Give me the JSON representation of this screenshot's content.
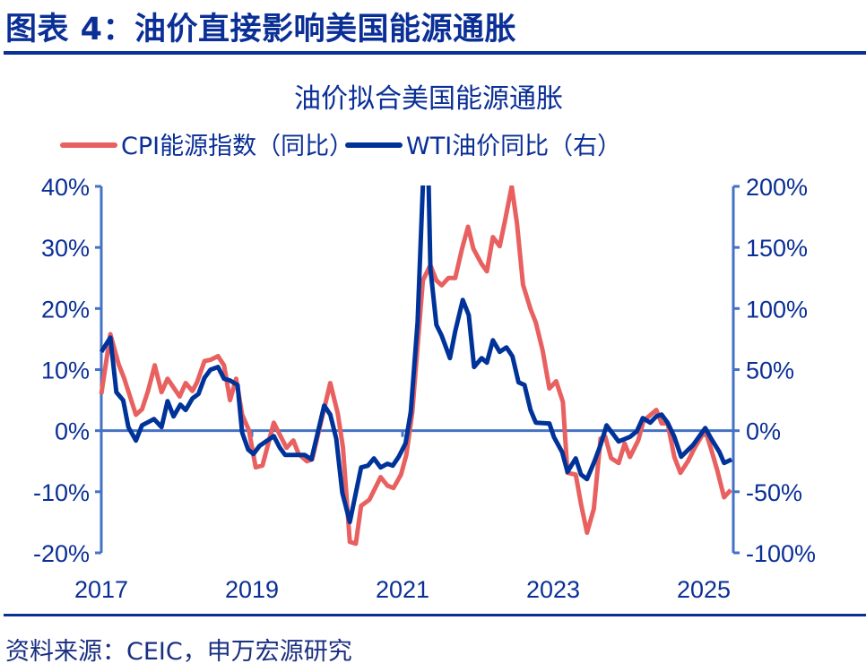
{
  "figure_title": "图表 4：油价直接影响美国能源通胀",
  "source": "资料来源：CEIC，申万宏源研究",
  "colors": {
    "cpi": "#e8605f",
    "wti": "#003399",
    "axis": "#4472c4",
    "text": "#0a2f96"
  },
  "chart_data": {
    "type": "line",
    "title": "油价拟合美国能源通胀",
    "legend_placement": "top",
    "grid": false,
    "x_ticks": [
      "2017",
      "2019",
      "2021",
      "2023",
      "2025"
    ],
    "xlim": [
      2017,
      2025.45
    ],
    "y_left": {
      "ticks": [
        "40%",
        "30%",
        "20%",
        "10%",
        "0%",
        "-10%",
        "-20%"
      ],
      "range": [
        -20,
        40
      ]
    },
    "y_right": {
      "ticks": [
        "200%",
        "150%",
        "100%",
        "50%",
        "0%",
        "-50%",
        "-100%"
      ],
      "range": [
        -100,
        200
      ]
    },
    "series": [
      {
        "name": "CPI能源指数（同比）",
        "axis": "left",
        "x": [
          2017.0,
          2017.12,
          2017.23,
          2017.3,
          2017.46,
          2017.54,
          2017.62,
          2017.71,
          2017.8,
          2017.88,
          2018.04,
          2018.12,
          2018.21,
          2018.27,
          2018.37,
          2018.45,
          2018.55,
          2018.63,
          2018.71,
          2018.79,
          2018.87,
          2018.96,
          2019.05,
          2019.14,
          2019.29,
          2019.38,
          2019.46,
          2019.55,
          2019.62,
          2019.73,
          2019.8,
          2020.04,
          2020.14,
          2020.21,
          2020.3,
          2020.38,
          2020.45,
          2020.56,
          2020.71,
          2020.8,
          2020.88,
          2020.98,
          2021.05,
          2021.13,
          2021.27,
          2021.37,
          2021.45,
          2021.52,
          2021.61,
          2021.7,
          2021.79,
          2021.87,
          2021.94,
          2022.05,
          2022.12,
          2022.2,
          2022.29,
          2022.36,
          2022.45,
          2022.52,
          2022.6,
          2022.7,
          2022.77,
          2022.86,
          2022.95,
          2023.04,
          2023.13,
          2023.19,
          2023.3,
          2023.37,
          2023.45,
          2023.54,
          2023.63,
          2023.69,
          2023.77,
          2023.87,
          2023.95,
          2024.02,
          2024.13,
          2024.2,
          2024.37,
          2024.44,
          2024.52,
          2024.61,
          2024.69,
          2024.79,
          2024.88,
          2025.02,
          2025.1,
          2025.18,
          2025.27,
          2025.36
        ],
        "values": [
          6.0,
          15.8,
          10.9,
          8.7,
          2.6,
          3.5,
          6.5,
          10.7,
          6.3,
          8.5,
          5.6,
          7.8,
          6.5,
          7.9,
          11.4,
          11.6,
          12.2,
          10.7,
          5.0,
          8.5,
          2.6,
          0.1,
          -6.0,
          -5.7,
          1.3,
          -0.9,
          -2.8,
          -1.6,
          -3.8,
          -5.0,
          -4.7,
          7.8,
          2.8,
          -2.8,
          -18.2,
          -18.5,
          -12.3,
          -11.3,
          -7.6,
          -9.0,
          -9.4,
          -7.2,
          -4.0,
          3.0,
          24.6,
          27.1,
          24.6,
          23.8,
          25.0,
          25.0,
          29.8,
          33.4,
          29.8,
          27.3,
          26.1,
          31.7,
          30.2,
          34.3,
          40.0,
          33.9,
          23.9,
          19.9,
          17.7,
          13.2,
          6.9,
          8.1,
          4.7,
          -6.9,
          -7.2,
          -12.0,
          -16.7,
          -12.8,
          -1.3,
          -0.9,
          -4.5,
          -5.3,
          -2.1,
          -4.3,
          -1.6,
          1.6,
          3.4,
          1.2,
          1.2,
          -4.3,
          -6.9,
          -5.0,
          -2.8,
          0.1,
          -3.1,
          -6.5,
          -10.9,
          -9.7
        ]
      },
      {
        "name": "WTI油价同比（右）",
        "axis": "right",
        "x": [
          2017.0,
          2017.12,
          2017.2,
          2017.29,
          2017.36,
          2017.46,
          2017.54,
          2017.7,
          2017.8,
          2017.88,
          2017.96,
          2018.05,
          2018.12,
          2018.21,
          2018.29,
          2018.37,
          2018.45,
          2018.55,
          2018.63,
          2018.71,
          2018.81,
          2018.87,
          2018.95,
          2019.02,
          2019.1,
          2019.29,
          2019.37,
          2019.44,
          2019.7,
          2019.79,
          2019.96,
          2020.04,
          2020.12,
          2020.2,
          2020.3,
          2020.45,
          2020.54,
          2020.62,
          2020.71,
          2020.8,
          2020.87,
          2020.95,
          2021.04,
          2021.11,
          2021.2,
          2021.32,
          2021.37,
          2021.45,
          2021.52,
          2021.63,
          2021.7,
          2021.8,
          2021.88,
          2021.95,
          2022.05,
          2022.12,
          2022.2,
          2022.29,
          2022.38,
          2022.46,
          2022.54,
          2022.62,
          2022.7,
          2022.77,
          2022.95,
          2023.01,
          2023.12,
          2023.19,
          2023.3,
          2023.37,
          2023.45,
          2023.55,
          2023.63,
          2023.71,
          2023.87,
          2024.02,
          2024.11,
          2024.19,
          2024.29,
          2024.37,
          2024.44,
          2024.52,
          2024.61,
          2024.7,
          2024.86,
          2025.02,
          2025.1,
          2025.21,
          2025.27,
          2025.37
        ],
        "values": [
          64.5,
          76.2,
          31.5,
          24.9,
          2.9,
          -8.1,
          4.4,
          9.5,
          2.9,
          24.2,
          11.7,
          21.3,
          16.9,
          26.4,
          30.1,
          43.3,
          49.9,
          52.1,
          42.5,
          41.1,
          37.4,
          -1.5,
          -15.4,
          -19.1,
          -12.5,
          -4.4,
          -13.9,
          -19.8,
          -19.8,
          -23.5,
          20.5,
          13.2,
          -6.6,
          -50.6,
          -74.8,
          -30.1,
          -28.6,
          -22.7,
          -30.1,
          -27.1,
          -28.6,
          -21.3,
          -10.3,
          15.4,
          88.7,
          280,
          132.7,
          86.5,
          77.7,
          59.4,
          81.4,
          107.0,
          94.6,
          52.1,
          59.4,
          55.7,
          74.0,
          64.5,
          68.2,
          60.9,
          39.6,
          37.4,
          16.9,
          6.6,
          5.9,
          -5.1,
          -17.6,
          -33.7,
          -22.7,
          -35.9,
          -39.6,
          -24.9,
          -11.7,
          4.4,
          -8.8,
          -5.1,
          -0.7,
          10.3,
          6.6,
          11.7,
          13.2,
          6.6,
          -5.1,
          -21.3,
          -11.7,
          2.2,
          -6.6,
          -17.6,
          -26.4,
          -23.5
        ]
      }
    ]
  }
}
